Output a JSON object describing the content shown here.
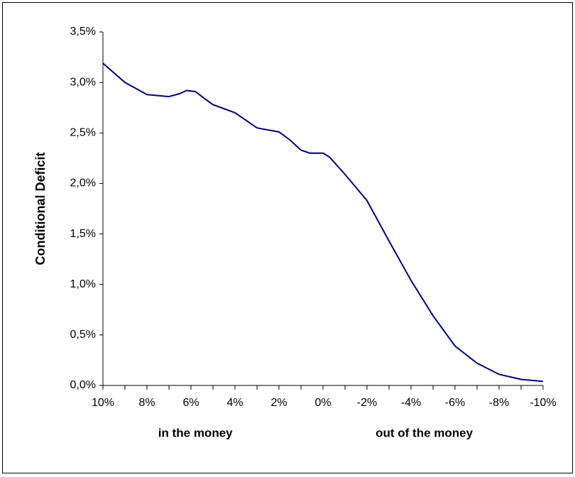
{
  "chart_data": {
    "type": "line",
    "ylabel": "Conditional Deficit",
    "annotations": [
      "in the money",
      "out of the money"
    ],
    "x": [
      10,
      9,
      8,
      7,
      6.5,
      6.2,
      5.8,
      5.5,
      5,
      4,
      3,
      2,
      1.5,
      1,
      0.6,
      0,
      -0.3,
      -1,
      -2,
      -3,
      -4,
      -5,
      -6,
      -7,
      -8,
      -9,
      -10
    ],
    "values": [
      3.19,
      3.0,
      2.88,
      2.86,
      2.89,
      2.92,
      2.91,
      2.86,
      2.78,
      2.7,
      2.55,
      2.51,
      2.43,
      2.33,
      2.3,
      2.3,
      2.26,
      2.09,
      1.83,
      1.43,
      1.04,
      0.69,
      0.39,
      0.22,
      0.11,
      0.06,
      0.04
    ],
    "color": "#000080",
    "xlim": [
      10,
      -10
    ],
    "xticks": [
      {
        "value": 10,
        "label": "10%"
      },
      {
        "value": 8,
        "label": "8%"
      },
      {
        "value": 6,
        "label": "6%"
      },
      {
        "value": 4,
        "label": "4%"
      },
      {
        "value": 2,
        "label": "2%"
      },
      {
        "value": 0,
        "label": "0%"
      },
      {
        "value": -2,
        "label": "-2%"
      },
      {
        "value": -4,
        "label": "-4%"
      },
      {
        "value": -6,
        "label": "-6%"
      },
      {
        "value": -8,
        "label": "-8%"
      },
      {
        "value": -10,
        "label": "-10%"
      }
    ],
    "ylim": [
      0,
      3.5
    ],
    "yticks": [
      {
        "value": 0,
        "label": "0,0%"
      },
      {
        "value": 0.5,
        "label": "0,5%"
      },
      {
        "value": 1,
        "label": "1,0%"
      },
      {
        "value": 1.5,
        "label": "1,5%"
      },
      {
        "value": 2,
        "label": "2,0%"
      },
      {
        "value": 2.5,
        "label": "2,5%"
      },
      {
        "value": 3,
        "label": "3,0%"
      },
      {
        "value": 3.5,
        "label": "3,5%"
      }
    ]
  }
}
